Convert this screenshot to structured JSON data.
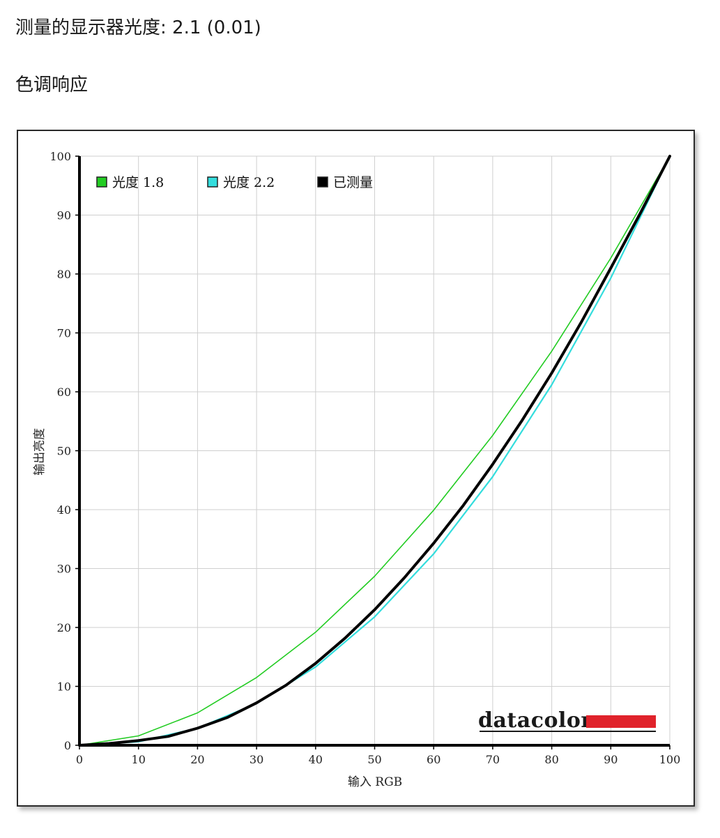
{
  "header": {
    "gamma_label": "测量的显示器光度:",
    "gamma_value": "2.1 (0.01)",
    "section_title": "色调响应"
  },
  "chart_data": {
    "type": "line",
    "title": "",
    "xlabel": "输入 RGB",
    "ylabel": "输出亮度",
    "xlim": [
      0,
      100
    ],
    "ylim": [
      0,
      100
    ],
    "xticks": [
      0,
      10,
      20,
      30,
      40,
      50,
      60,
      70,
      80,
      90,
      100
    ],
    "yticks": [
      0,
      10,
      20,
      30,
      40,
      50,
      60,
      70,
      80,
      90,
      100
    ],
    "grid": true,
    "legend_position": "top-left",
    "brand": "datacolor",
    "series": [
      {
        "name": "光度 1.8",
        "color": "#22cc22",
        "x": [
          0,
          10,
          20,
          30,
          40,
          50,
          60,
          70,
          80,
          90,
          100
        ],
        "y": [
          0,
          1.6,
          5.5,
          11.5,
          19.2,
          28.7,
          39.9,
          52.6,
          66.9,
          82.7,
          100
        ]
      },
      {
        "name": "光度 2.2",
        "color": "#33dddd",
        "x": [
          0,
          10,
          20,
          30,
          40,
          50,
          60,
          70,
          80,
          90,
          100
        ],
        "y": [
          0,
          0.6,
          2.9,
          7.1,
          13.3,
          21.8,
          32.5,
          45.6,
          61.2,
          79.3,
          100
        ]
      },
      {
        "name": "已测量",
        "color": "#000000",
        "x": [
          0,
          5,
          10,
          15,
          20,
          25,
          30,
          35,
          40,
          45,
          50,
          55,
          60,
          65,
          70,
          75,
          80,
          85,
          90,
          95,
          100
        ],
        "y": [
          0,
          0.3,
          0.8,
          1.5,
          2.9,
          4.7,
          7.2,
          10.2,
          13.9,
          18.2,
          23.0,
          28.4,
          34.3,
          40.7,
          47.7,
          55.2,
          63.2,
          71.8,
          81.0,
          90.3,
          100
        ]
      }
    ]
  }
}
